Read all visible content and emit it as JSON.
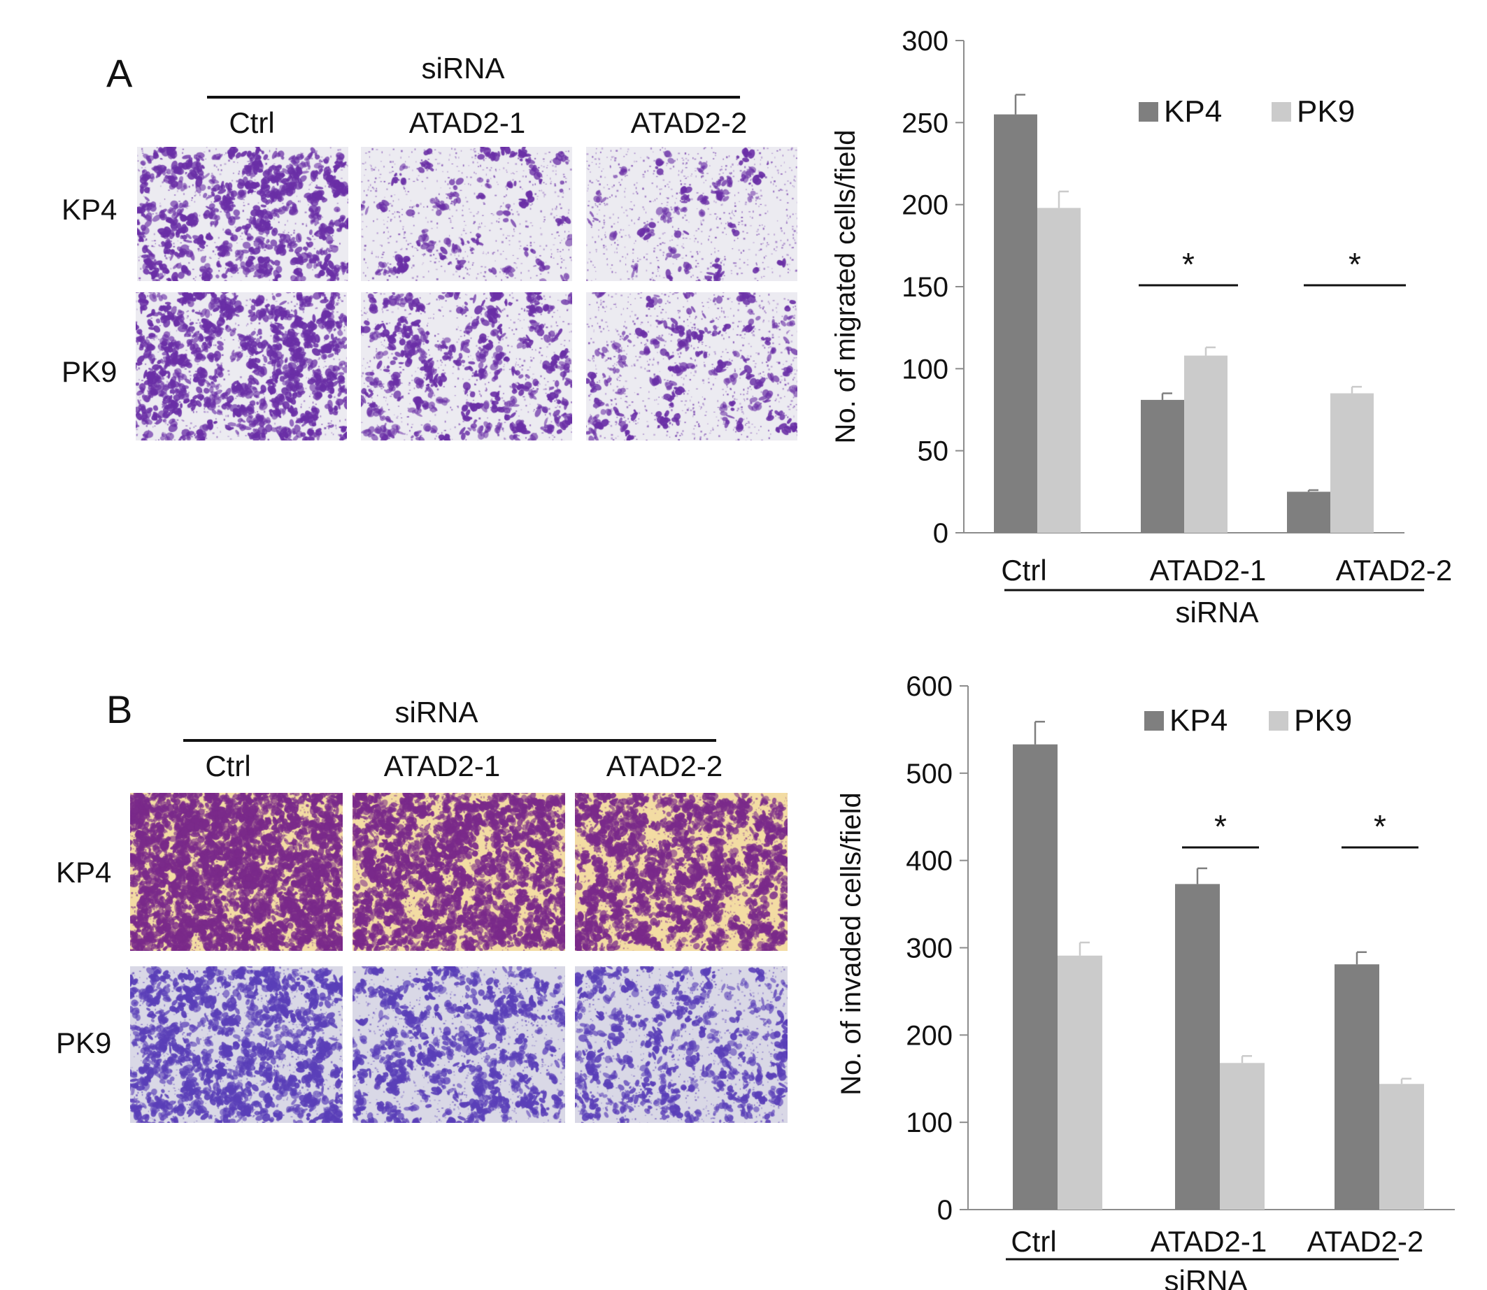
{
  "colors": {
    "kp4": "#7f7f7f",
    "pk9": "#cbcbcb",
    "axis": "#8c8c8c",
    "text": "#111111",
    "stain_migration": "#6a2fa6",
    "stain_invasion_kp4": "#7a2a8a",
    "stain_invasion_pk9": "#5a3fb8",
    "bg_migration": "#ecebf1",
    "bg_invasion_kp4": "#f3dca3",
    "bg_invasion_pk9": "#d9d8e6"
  },
  "panels": [
    {
      "letter": "A",
      "group_label": "siRNA",
      "columns": [
        "Ctrl",
        "ATAD2-1",
        "ATAD2-2"
      ],
      "rows": [
        "KP4",
        "PK9"
      ],
      "image_kind": "migration"
    },
    {
      "letter": "B",
      "group_label": "siRNA",
      "columns": [
        "Ctrl",
        "ATAD2-1",
        "ATAD2-2"
      ],
      "rows": [
        "KP4",
        "PK9"
      ],
      "image_kind": "invasion"
    }
  ],
  "chart_data": [
    {
      "type": "bar",
      "categories": [
        "Ctrl",
        "ATAD2-1",
        "ATAD2-2"
      ],
      "group_label": "siRNA",
      "ylabel": "No. of migrated cells/field",
      "ylim": [
        0,
        300
      ],
      "yticks": [
        0,
        50,
        100,
        150,
        200,
        250,
        300
      ],
      "series": [
        {
          "name": "KP4",
          "values": [
            255,
            81,
            25
          ],
          "errors": [
            12,
            4,
            1
          ],
          "color": "#7f7f7f"
        },
        {
          "name": "PK9",
          "values": [
            198,
            108,
            85
          ],
          "errors": [
            10,
            5,
            4
          ],
          "color": "#cbcbcb"
        }
      ],
      "significance": [
        {
          "category": "ATAD2-1",
          "label": "*"
        },
        {
          "category": "ATAD2-2",
          "label": "*"
        }
      ],
      "legend_position": "top-right",
      "grid": false
    },
    {
      "type": "bar",
      "categories": [
        "Ctrl",
        "ATAD2-1",
        "ATAD2-2"
      ],
      "group_label": "siRNA",
      "ylabel": "No. of invaded cells/field",
      "ylim": [
        0,
        600
      ],
      "yticks": [
        0,
        100,
        200,
        300,
        400,
        500,
        600
      ],
      "series": [
        {
          "name": "KP4",
          "values": [
            533,
            373,
            281
          ],
          "errors": [
            26,
            18,
            14
          ],
          "color": "#7f7f7f"
        },
        {
          "name": "PK9",
          "values": [
            291,
            168,
            144
          ],
          "errors": [
            15,
            8,
            6
          ],
          "color": "#cbcbcb"
        }
      ],
      "significance": [
        {
          "category": "ATAD2-1",
          "label": "*"
        },
        {
          "category": "ATAD2-2",
          "label": "*"
        }
      ],
      "legend_position": "top-right",
      "grid": false
    }
  ]
}
